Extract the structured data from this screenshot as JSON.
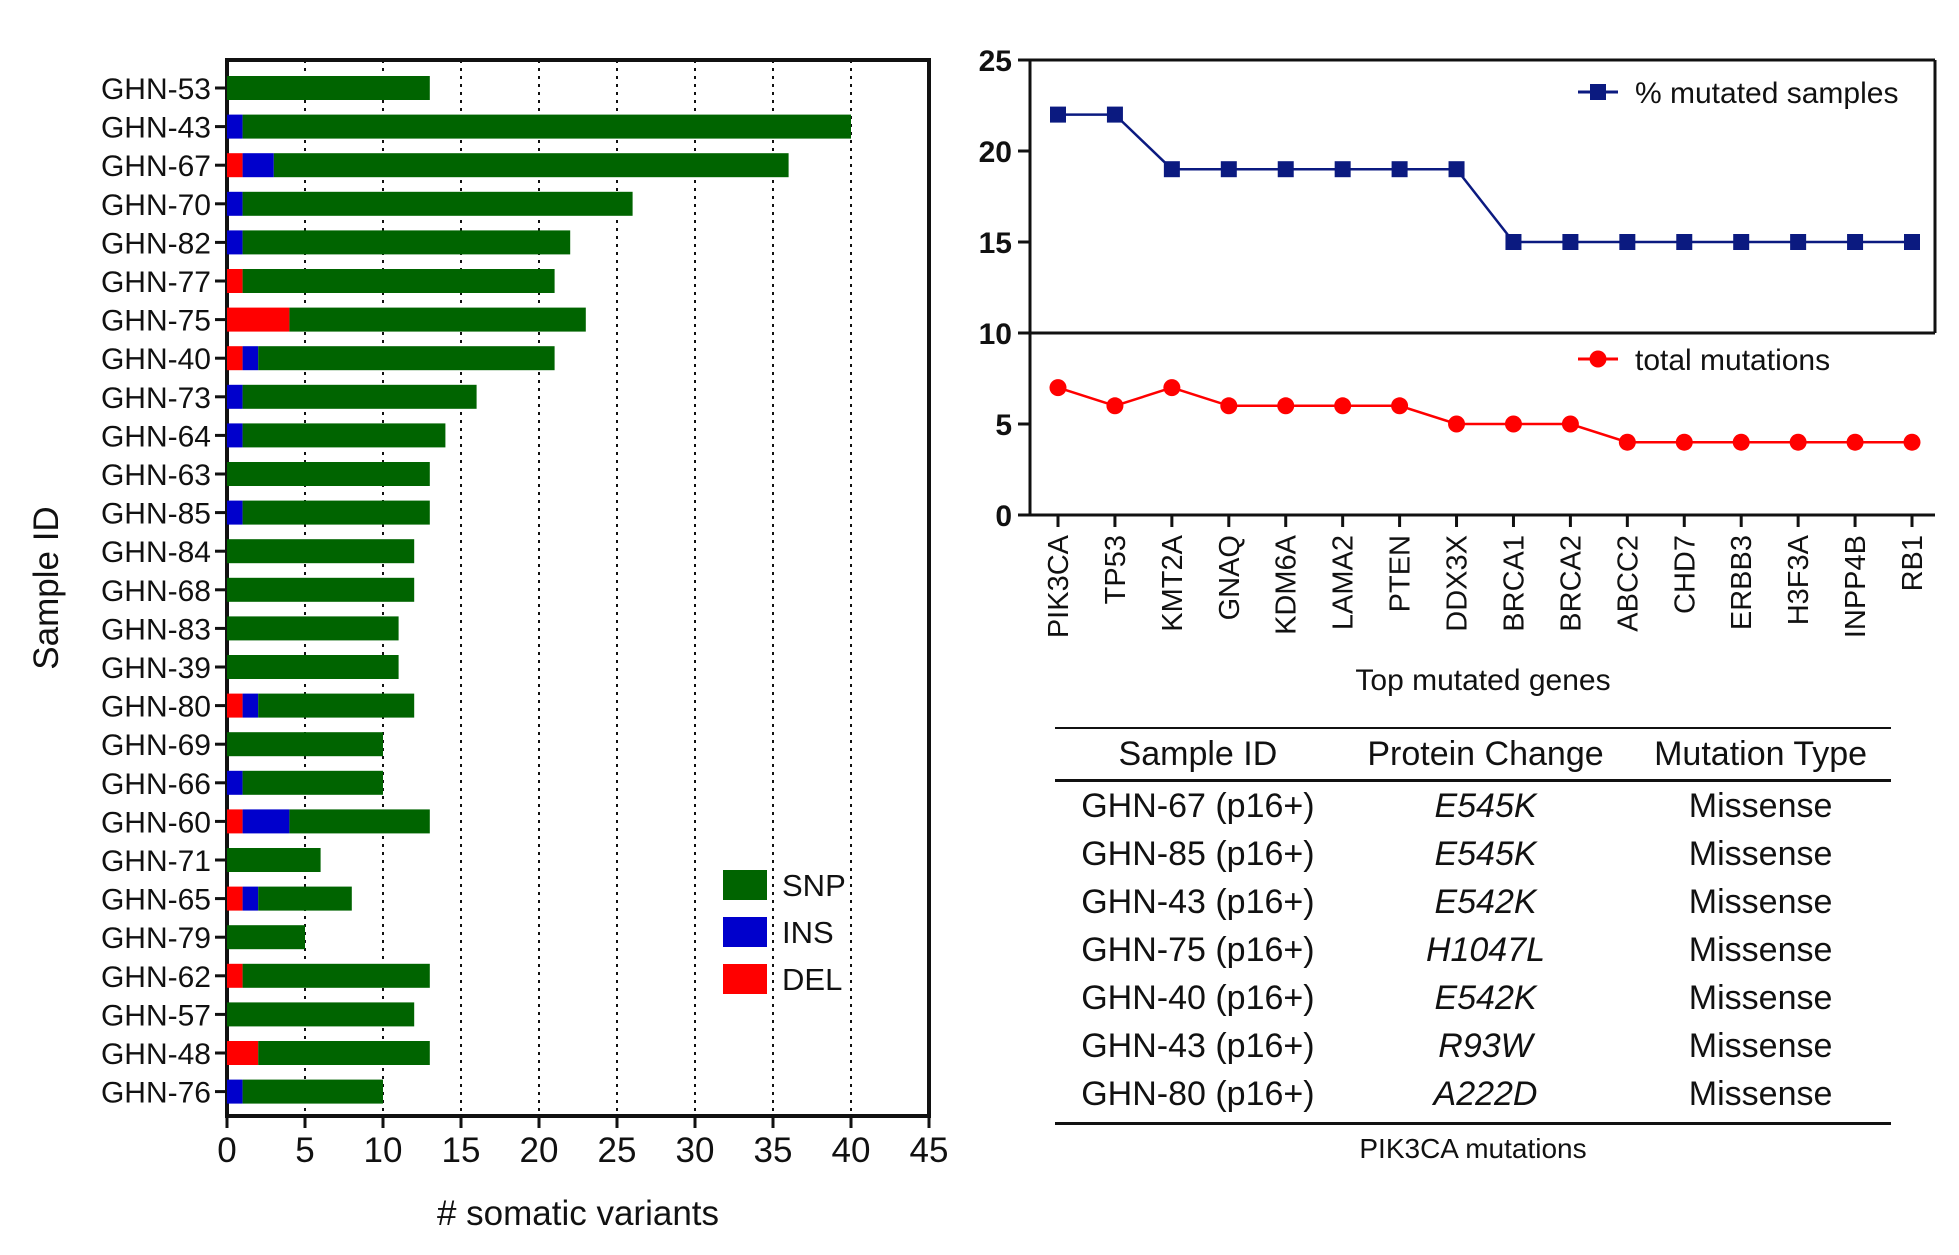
{
  "chart_data": [
    {
      "type": "bar",
      "orientation": "horizontal",
      "stacked": true,
      "xlabel": "# somatic variants",
      "ylabel": "Sample ID",
      "xlim": [
        0,
        45
      ],
      "xticks": [
        0,
        5,
        10,
        15,
        20,
        25,
        30,
        35,
        40,
        45
      ],
      "grid": "vertical dotted",
      "legend": "bottom-right",
      "categories": [
        "GHN-53",
        "GHN-43",
        "GHN-67",
        "GHN-70",
        "GHN-82",
        "GHN-77",
        "GHN-75",
        "GHN-40",
        "GHN-73",
        "GHN-64",
        "GHN-63",
        "GHN-85",
        "GHN-84",
        "GHN-68",
        "GHN-83",
        "GHN-39",
        "GHN-80",
        "GHN-69",
        "GHN-66",
        "GHN-60",
        "GHN-71",
        "GHN-65",
        "GHN-79",
        "GHN-62",
        "GHN-57",
        "GHN-48",
        "GHN-76"
      ],
      "series": [
        {
          "name": "DEL",
          "color": "#ff0000",
          "values": [
            0,
            0,
            1,
            0,
            0,
            1,
            4,
            1,
            0,
            0,
            0,
            0,
            0,
            0,
            0,
            0,
            1,
            0,
            0,
            1,
            0,
            1,
            0,
            1,
            0,
            2,
            0
          ]
        },
        {
          "name": "INS",
          "color": "#0000cc",
          "values": [
            0,
            1,
            2,
            1,
            1,
            0,
            0,
            1,
            1,
            1,
            0,
            1,
            0,
            0,
            0,
            0,
            1,
            0,
            1,
            3,
            0,
            1,
            0,
            0,
            0,
            0,
            1
          ]
        },
        {
          "name": "SNP",
          "color": "#006400",
          "values": [
            13,
            39,
            33,
            25,
            21,
            20,
            19,
            19,
            15,
            13,
            13,
            12,
            12,
            12,
            11,
            11,
            10,
            10,
            9,
            9,
            6,
            6,
            5,
            12,
            12,
            11,
            9
          ]
        }
      ],
      "legend_order": [
        "SNP",
        "INS",
        "DEL"
      ]
    },
    {
      "type": "line",
      "xlabel": "Top mutated genes",
      "ylabel": "",
      "ylim": [
        0,
        25
      ],
      "yticks": [
        0,
        5,
        10,
        15,
        20,
        25
      ],
      "legend": "top-right",
      "categories": [
        "PIK3CA",
        "TP53",
        "KMT2A",
        "GNAQ",
        "KDM6A",
        "LAMA2",
        "PTEN",
        "DDX3X",
        "BRCA1",
        "BRCA2",
        "ABCC2",
        "CHD7",
        "ERBB3",
        "H3F3A",
        "INPP4B",
        "RB1"
      ],
      "series": [
        {
          "name": "% mutated samples",
          "color": "#0b1a80",
          "marker": "square",
          "values": [
            22,
            22,
            19,
            19,
            19,
            19,
            19,
            19,
            15,
            15,
            15,
            15,
            15,
            15,
            15,
            15
          ]
        },
        {
          "name": "total mutations",
          "color": "#ff0000",
          "marker": "circle",
          "values": [
            7,
            6,
            7,
            6,
            6,
            6,
            6,
            5,
            5,
            5,
            4,
            4,
            4,
            4,
            4,
            4
          ]
        }
      ]
    },
    {
      "type": "table",
      "caption": "PIK3CA mutations",
      "columns": [
        "Sample ID",
        "Protein Change",
        "Mutation Type"
      ],
      "rows": [
        [
          "GHN-67 (p16+)",
          "E545K",
          "Missense"
        ],
        [
          "GHN-85 (p16+)",
          "E545K",
          "Missense"
        ],
        [
          "GHN-43 (p16+)",
          "E542K",
          "Missense"
        ],
        [
          "GHN-75 (p16+)",
          "H1047L",
          "Missense"
        ],
        [
          "GHN-40 (p16+)",
          "E542K",
          "Missense"
        ],
        [
          "GHN-43 (p16+)",
          "R93W",
          "Missense"
        ],
        [
          "GHN-80 (p16+)",
          "A222D",
          "Missense"
        ]
      ]
    }
  ]
}
